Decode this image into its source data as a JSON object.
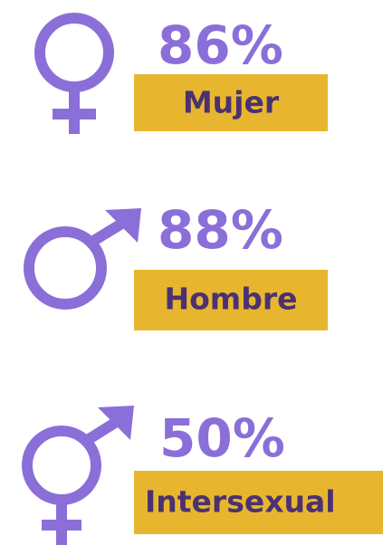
{
  "items": [
    {
      "percent": "86%",
      "label": "Mujer"
    },
    {
      "percent": "88%",
      "label": "Hombre"
    },
    {
      "percent": "50%",
      "label": "Intersexual"
    }
  ]
}
